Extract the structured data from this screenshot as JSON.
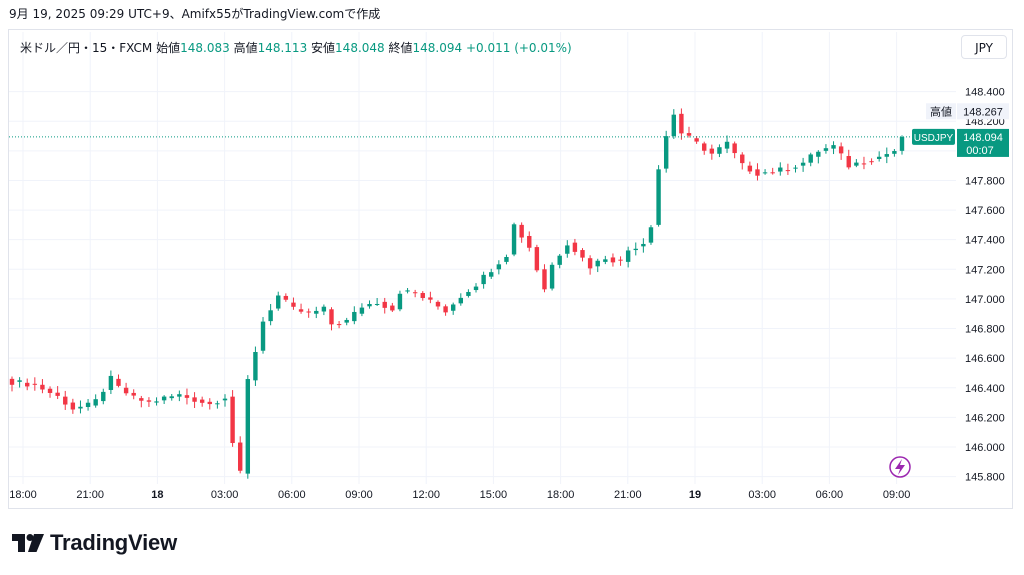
{
  "caption": "9月 19, 2025 09:29 UTC+9、Amifx55がTradingView.comで作成",
  "legend": {
    "symbol": "米ドル／円・15・FXCM",
    "open_label": "始値",
    "open": "148.083",
    "high_label": "高値",
    "high": "148.113",
    "low_label": "安値",
    "low": "148.048",
    "close_label": "終値",
    "close": "148.094",
    "change": "+0.011 (+0.01%)"
  },
  "currency_button": "JPY",
  "high_marker": {
    "label": "高値",
    "value": "148.267"
  },
  "price_tag": {
    "symbol": "USDJPY",
    "value": "148.094",
    "countdown": "00:07"
  },
  "brand": {
    "name": "TradingView"
  },
  "colors": {
    "up": "#089981",
    "down": "#f23645",
    "grid": "#f0f3fa",
    "axis_text": "#131722"
  },
  "chart_data": {
    "type": "candlestick",
    "x_ticks": [
      "18:00",
      "21:00",
      "18",
      "03:00",
      "06:00",
      "09:00",
      "12:00",
      "15:00",
      "18:00",
      "21:00",
      "19",
      "03:00",
      "06:00",
      "09:00"
    ],
    "y_ticks": [
      145.8,
      146.0,
      146.2,
      146.4,
      146.6,
      146.8,
      147.0,
      147.2,
      147.4,
      147.6,
      147.8,
      148.0,
      148.2,
      148.4
    ],
    "ylim": [
      145.75,
      148.6
    ],
    "last_price": 148.094,
    "session_high": 148.267,
    "close_path": [
      [
        0,
        146.44
      ],
      [
        3,
        146.42
      ],
      [
        6,
        146.34
      ],
      [
        8,
        146.26
      ],
      [
        10,
        146.28
      ],
      [
        11,
        146.31
      ],
      [
        13,
        146.46
      ],
      [
        14,
        146.4
      ],
      [
        16,
        146.33
      ],
      [
        18,
        146.3
      ],
      [
        20,
        146.33
      ],
      [
        22,
        146.35
      ],
      [
        24,
        146.32
      ],
      [
        26,
        146.29
      ],
      [
        28,
        146.34
      ],
      [
        29,
        146.03
      ],
      [
        30,
        145.82
      ],
      [
        31,
        146.45
      ],
      [
        33,
        146.85
      ],
      [
        35,
        147.02
      ],
      [
        37,
        146.93
      ],
      [
        39,
        146.9
      ],
      [
        41,
        146.93
      ],
      [
        42,
        146.83
      ],
      [
        44,
        146.85
      ],
      [
        46,
        146.95
      ],
      [
        48,
        146.98
      ],
      [
        50,
        146.93
      ],
      [
        51,
        147.05
      ],
      [
        53,
        147.04
      ],
      [
        55,
        146.98
      ],
      [
        57,
        146.92
      ],
      [
        59,
        147.02
      ],
      [
        61,
        147.1
      ],
      [
        63,
        147.2
      ],
      [
        65,
        147.3
      ],
      [
        66,
        147.5
      ],
      [
        68,
        147.35
      ],
      [
        69,
        147.2
      ],
      [
        70,
        147.07
      ],
      [
        71,
        147.23
      ],
      [
        73,
        147.38
      ],
      [
        74,
        147.33
      ],
      [
        76,
        147.22
      ],
      [
        78,
        147.28
      ],
      [
        80,
        147.25
      ],
      [
        81,
        147.33
      ],
      [
        83,
        147.38
      ],
      [
        84,
        147.5
      ],
      [
        85,
        147.88
      ],
      [
        86,
        148.1
      ],
      [
        87,
        148.25
      ],
      [
        88,
        148.12
      ],
      [
        90,
        148.05
      ],
      [
        92,
        147.98
      ],
      [
        94,
        148.05
      ],
      [
        96,
        147.9
      ],
      [
        98,
        147.85
      ],
      [
        100,
        147.86
      ],
      [
        102,
        147.88
      ],
      [
        104,
        147.92
      ],
      [
        106,
        148.0
      ],
      [
        108,
        148.03
      ],
      [
        110,
        147.9
      ],
      [
        112,
        147.93
      ],
      [
        114,
        147.96
      ],
      [
        116,
        148.0
      ],
      [
        117,
        148.094
      ]
    ],
    "x_range": [
      0,
      117
    ]
  }
}
